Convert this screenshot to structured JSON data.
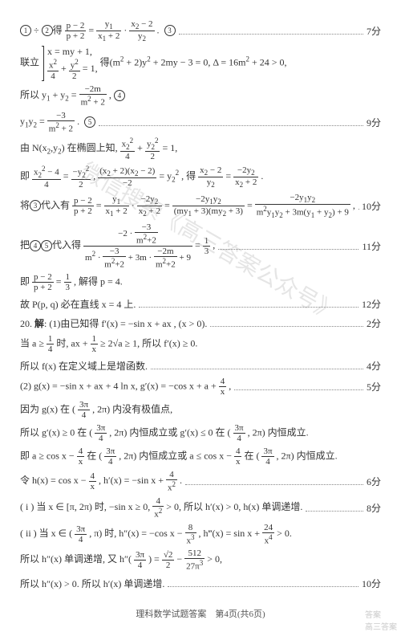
{
  "lines": [
    {
      "html": "<span class='circled'>1</span> ÷ <span class='circled'>2</span>得 <span class='frac'><span class='num'>p − 2</span><span class='den'>p + 2</span></span> = <span class='frac'><span class='num'>y<span class='sub'>1</span></span><span class='den'>x<span class='sub'>1</span> + 2</span></span> · <span class='frac'><span class='num'>x<span class='sub'>2</span> − 2</span><span class='den'>y<span class='sub'>2</span></span></span> . &nbsp;<span class='circled'>3</span>",
      "score": "7分"
    },
    {
      "html": "联立 <span class='brace-block'><span style='display:block'>x = my + 1,</span><span style='display:block'><span class='frac'><span class='num'>x<span class='sup'>2</span></span><span class='den'>4</span></span> + <span class='frac'><span class='num'>y<span class='sup'>2</span></span><span class='den'>2</span></span> = 1,</span></span> 得(m<span class='sup'>2</span> + 2)y<span class='sup'>2</span> + 2my − 3 = 0, Δ = 16m<span class='sup'>2</span> + 24 > 0,"
    },
    {
      "html": "所以 y<span class='sub'>1</span> + y<span class='sub'>2</span> = <span class='frac'><span class='num'>−2m</span><span class='den'>m<span class='sup'>2</span> + 2</span></span> , <span class='circled'>4</span>"
    },
    {
      "html": "y<span class='sub'>1</span>y<span class='sub'>2</span> = <span class='frac'><span class='num'>−3</span><span class='den'>m<span class='sup'>2</span> + 2</span></span> . &nbsp;<span class='circled'>5</span>",
      "score": "9分"
    },
    {
      "html": "由 N(x<span class='sub'>2</span>,y<span class='sub'>2</span>) 在椭圆上知, <span class='frac'><span class='num'>x<span class='sub'>2</span><span class='sup'>2</span></span><span class='den'>4</span></span> + <span class='frac'><span class='num'>y<span class='sub'>2</span><span class='sup'>2</span></span><span class='den'>2</span></span> = 1,"
    },
    {
      "html": "即 <span class='frac'><span class='num'>x<span class='sub'>2</span><span class='sup'>2</span> − 4</span><span class='den'>4</span></span> = <span class='frac'><span class='num'>−y<span class='sub'>2</span><span class='sup'>2</span></span><span class='den'>2</span></span> , <span class='frac'><span class='num'>(x<span class='sub'>2</span> + 2)(x<span class='sub'>2</span> − 2)</span><span class='den'>−2</span></span> = y<span class='sub'>2</span><span class='sup'>2</span> , 得 <span class='frac'><span class='num'>x<span class='sub'>2</span> − 2</span><span class='den'>y<span class='sub'>2</span></span></span> = <span class='frac'><span class='num'>−2y<span class='sub'>2</span></span><span class='den'>x<span class='sub'>2</span> + 2</span></span> ."
    },
    {
      "html": "将<span class='circled'>3</span>代入有 <span class='frac'><span class='num'>p − 2</span><span class='den'>p + 2</span></span> = <span class='frac'><span class='num'>y<span class='sub'>1</span></span><span class='den'>x<span class='sub'>1</span> + 2</span></span> · <span class='frac'><span class='num'>−2y<span class='sub'>2</span></span><span class='den'>x<span class='sub'>2</span> + 2</span></span> = <span class='frac'><span class='num'>−2y<span class='sub'>1</span>y<span class='sub'>2</span></span><span class='den'>(my<span class='sub'>1</span> + 3)(my<span class='sub'>2</span> + 3)</span></span> = <span class='frac'><span class='num'>−2y<span class='sub'>1</span>y<span class='sub'>2</span></span><span class='den'>m<span class='sup'>2</span>y<span class='sub'>1</span>y<span class='sub'>2</span> + 3m(y<span class='sub'>1</span> + y<span class='sub'>2</span>) + 9</span></span> ,",
      "score": "10分"
    },
    {
      "html": "把<span class='circled'>4</span><span class='circled'>5</span>代入得 <span class='frac'><span class='num'>−2 · <span class='frac'><span class='num'>−3</span><span class='den'>m<span class='sup'>2</span>+2</span></span></span><span class='den'>m<span class='sup'>2</span> · <span class='frac'><span class='num'>−3</span><span class='den'>m<span class='sup'>2</span>+2</span></span> + 3m · <span class='frac'><span class='num'>−2m</span><span class='den'>m<span class='sup'>2</span>+2</span></span> + 9</span></span> = <span class='frac'><span class='num'>1</span><span class='den'>3</span></span> ,",
      "score": "11分"
    },
    {
      "html": "即 <span class='frac'><span class='num'>p − 2</span><span class='den'>p + 2</span></span> = <span class='frac'><span class='num'>1</span><span class='den'>3</span></span> , 解得 p = 4."
    },
    {
      "html": "故 P(p, q) 必在直线 x = 4 上.",
      "score": "12分"
    },
    {
      "html": "20. <b>解</b>: (1)由已知得 f′(x) = −sin x + ax , (x > 0).",
      "score": "2分"
    },
    {
      "html": "当 a ≥ <span class='frac'><span class='num'>1</span><span class='den'>4</span></span> 时, ax + <span class='frac'><span class='num'>1</span><span class='den'>x</span></span> ≥ 2√a ≥ 1, 所以 f′(x) ≥ 0."
    },
    {
      "html": "所以 f(x) 在定义域上是增函数.",
      "score": "4分"
    },
    {
      "html": "(2) g(x) = −sin x + ax + 4 ln x, g′(x) = −cos x + a + <span class='frac'><span class='num'>4</span><span class='den'>x</span></span> ,",
      "score": "5分"
    },
    {
      "html": "因为 g(x) 在 ( <span class='frac'><span class='num'>3π</span><span class='den'>4</span></span> , 2π) 内没有极值点,"
    },
    {
      "html": "所以 g′(x) ≥ 0 在 ( <span class='frac'><span class='num'>3π</span><span class='den'>4</span></span> , 2π) 内恒成立或 g′(x) ≤ 0 在 ( <span class='frac'><span class='num'>3π</span><span class='den'>4</span></span> , 2π) 内恒成立."
    },
    {
      "html": "即 a ≥ cos x − <span class='frac'><span class='num'>4</span><span class='den'>x</span></span> 在 ( <span class='frac'><span class='num'>3π</span><span class='den'>4</span></span> , 2π) 内恒成立或 a ≤ cos x − <span class='frac'><span class='num'>4</span><span class='den'>x</span></span> 在 ( <span class='frac'><span class='num'>3π</span><span class='den'>4</span></span> , 2π) 内恒成立."
    },
    {
      "html": "令 h(x) = cos x − <span class='frac'><span class='num'>4</span><span class='den'>x</span></span> , h′(x) = −sin x + <span class='frac'><span class='num'>4</span><span class='den'>x<span class='sup'>2</span></span></span> .",
      "score": "6分"
    },
    {
      "html": "( i ) 当 x ∈ [π, 2π) 时, −sin x ≥ 0, <span class='frac'><span class='num'>4</span><span class='den'>x<span class='sup'>2</span></span></span> > 0, 所以 h′(x) > 0, h(x) 单调递增.",
      "score": "8分"
    },
    {
      "html": "( ii ) 当 x ∈ ( <span class='frac'><span class='num'>3π</span><span class='den'>4</span></span> , π) 时, h″(x) = −cos x − <span class='frac'><span class='num'>8</span><span class='den'>x<span class='sup'>3</span></span></span> , h‴(x) = sin x + <span class='frac'><span class='num'>24</span><span class='den'>x<span class='sup'>4</span></span></span> > 0."
    },
    {
      "html": "所以 h″(x) 单调递增, 又 h″( <span class='frac'><span class='num'>3π</span><span class='den'>4</span></span> ) = <span class='frac'><span class='num'>√2</span><span class='den'>2</span></span> − <span class='frac'><span class='num'>512</span><span class='den'>27π<span class='sup'>3</span></span></span> > 0,"
    },
    {
      "html": "所以 h″(x) > 0. 所以 h′(x) 单调递增.",
      "score": "10分"
    }
  ],
  "footer": "理科数学试题答案　第4页(共6页)",
  "watermark": "微信搜索《高三答案公众号》",
  "corner1": "答案",
  "corner2": "高三答案"
}
